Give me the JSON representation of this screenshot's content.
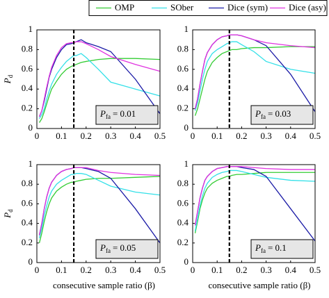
{
  "legend": {
    "entries": [
      {
        "name": "OMP",
        "color": "#33cc33"
      },
      {
        "name": "SOber",
        "color": "#33e0e8"
      },
      {
        "name": "Dice (sym)",
        "color": "#1a1aa6"
      },
      {
        "name": "Dice (asy)",
        "color": "#e033e0"
      }
    ]
  },
  "chart_data": [
    {
      "type": "line",
      "ylabel": {
        "symbol": "P",
        "subscript": "d"
      },
      "annotation": {
        "symbol": "P",
        "subscript": "fa",
        "text": "= 0.01"
      },
      "vline": 0.15,
      "xlim": [
        0,
        0.5
      ],
      "xticks": [
        0,
        0.1,
        0.2,
        0.3,
        0.4,
        0.5
      ],
      "ylim": [
        0,
        1
      ],
      "yticks": [
        0,
        0.2,
        0.4,
        0.6,
        0.8,
        1
      ],
      "x": [
        0.01,
        0.02,
        0.03,
        0.04,
        0.05,
        0.06,
        0.08,
        0.1,
        0.12,
        0.14,
        0.15,
        0.16,
        0.18,
        0.2,
        0.25,
        0.3,
        0.4,
        0.5
      ],
      "series": [
        {
          "values": [
            0.06,
            0.1,
            0.17,
            0.25,
            0.33,
            0.4,
            0.48,
            0.55,
            0.6,
            0.63,
            0.64,
            0.65,
            0.67,
            0.68,
            0.7,
            0.71,
            0.71,
            0.7
          ]
        },
        {
          "values": [
            0.1,
            0.14,
            0.2,
            0.3,
            0.38,
            0.45,
            0.55,
            0.62,
            0.68,
            0.72,
            0.74,
            0.74,
            0.76,
            0.72,
            0.6,
            0.47,
            0.4,
            0.33
          ]
        },
        {
          "values": [
            0.12,
            0.18,
            0.28,
            0.4,
            0.52,
            0.6,
            0.72,
            0.8,
            0.85,
            0.86,
            0.87,
            0.88,
            0.9,
            0.87,
            0.83,
            0.78,
            0.5,
            0.15
          ]
        },
        {
          "values": [
            0.12,
            0.18,
            0.3,
            0.42,
            0.53,
            0.62,
            0.74,
            0.82,
            0.86,
            0.87,
            0.87,
            0.88,
            0.88,
            0.86,
            0.8,
            0.73,
            0.65,
            0.58
          ]
        }
      ]
    },
    {
      "type": "line",
      "annotation": {
        "symbol": "P",
        "subscript": "fa",
        "text": "= 0.03"
      },
      "vline": 0.15,
      "xlim": [
        0,
        0.5
      ],
      "xticks": [
        0,
        0.1,
        0.2,
        0.3,
        0.4,
        0.5
      ],
      "ylim": [
        0,
        1
      ],
      "yticks": [
        0,
        0.2,
        0.4,
        0.6,
        0.8,
        1
      ],
      "x": [
        0.01,
        0.02,
        0.03,
        0.04,
        0.05,
        0.06,
        0.08,
        0.1,
        0.12,
        0.14,
        0.15,
        0.16,
        0.18,
        0.2,
        0.25,
        0.3,
        0.4,
        0.5
      ],
      "series": [
        {
          "values": [
            0.13,
            0.2,
            0.3,
            0.4,
            0.5,
            0.58,
            0.67,
            0.72,
            0.76,
            0.78,
            0.79,
            0.8,
            0.8,
            0.81,
            0.82,
            0.82,
            0.83,
            0.83
          ]
        },
        {
          "values": [
            0.18,
            0.26,
            0.38,
            0.5,
            0.6,
            0.68,
            0.76,
            0.8,
            0.83,
            0.86,
            0.87,
            0.88,
            0.88,
            0.85,
            0.78,
            0.68,
            0.6,
            0.56
          ]
        },
        {
          "values": [
            0.2,
            0.3,
            0.45,
            0.58,
            0.7,
            0.77,
            0.85,
            0.9,
            0.93,
            0.94,
            0.95,
            0.95,
            0.95,
            0.94,
            0.9,
            0.84,
            0.55,
            0.17
          ]
        },
        {
          "values": [
            0.2,
            0.3,
            0.45,
            0.58,
            0.7,
            0.77,
            0.85,
            0.9,
            0.93,
            0.94,
            0.95,
            0.95,
            0.95,
            0.94,
            0.9,
            0.87,
            0.84,
            0.82
          ]
        }
      ]
    },
    {
      "type": "line",
      "ylabel": {
        "symbol": "P",
        "subscript": "d"
      },
      "xlabel": "consecutive sample ratio (β)",
      "annotation": {
        "symbol": "P",
        "subscript": "fa",
        "text": "= 0.05"
      },
      "vline": 0.15,
      "xlim": [
        0,
        0.5
      ],
      "xticks": [
        0,
        0.1,
        0.2,
        0.3,
        0.4,
        0.5
      ],
      "ylim": [
        0,
        1
      ],
      "yticks": [
        0,
        0.2,
        0.4,
        0.6,
        0.8,
        1
      ],
      "x": [
        0.01,
        0.02,
        0.03,
        0.04,
        0.05,
        0.06,
        0.08,
        0.1,
        0.12,
        0.14,
        0.15,
        0.16,
        0.18,
        0.2,
        0.25,
        0.3,
        0.4,
        0.5
      ],
      "series": [
        {
          "values": [
            0.2,
            0.3,
            0.42,
            0.52,
            0.6,
            0.66,
            0.73,
            0.77,
            0.8,
            0.82,
            0.82,
            0.83,
            0.84,
            0.85,
            0.86,
            0.86,
            0.87,
            0.88
          ]
        },
        {
          "values": [
            0.25,
            0.35,
            0.48,
            0.58,
            0.67,
            0.73,
            0.8,
            0.84,
            0.87,
            0.9,
            0.9,
            0.91,
            0.91,
            0.9,
            0.84,
            0.78,
            0.72,
            0.69
          ]
        },
        {
          "values": [
            0.28,
            0.4,
            0.55,
            0.67,
            0.76,
            0.82,
            0.89,
            0.93,
            0.95,
            0.96,
            0.97,
            0.97,
            0.97,
            0.96,
            0.93,
            0.86,
            0.55,
            0.2
          ]
        },
        {
          "values": [
            0.28,
            0.4,
            0.55,
            0.67,
            0.76,
            0.82,
            0.89,
            0.93,
            0.95,
            0.96,
            0.97,
            0.97,
            0.97,
            0.97,
            0.94,
            0.92,
            0.9,
            0.89
          ]
        }
      ]
    },
    {
      "type": "line",
      "xlabel": "consecutive sample ratio (β)",
      "annotation": {
        "symbol": "P",
        "subscript": "fa",
        "text": "= 0.1"
      },
      "vline": 0.15,
      "xlim": [
        0,
        0.5
      ],
      "xticks": [
        0,
        0.1,
        0.2,
        0.3,
        0.4,
        0.5
      ],
      "ylim": [
        0,
        1
      ],
      "yticks": [
        0,
        0.2,
        0.4,
        0.6,
        0.8,
        1
      ],
      "x": [
        0.01,
        0.02,
        0.03,
        0.04,
        0.05,
        0.06,
        0.08,
        0.1,
        0.12,
        0.14,
        0.15,
        0.16,
        0.18,
        0.2,
        0.25,
        0.3,
        0.4,
        0.5
      ],
      "series": [
        {
          "values": [
            0.3,
            0.42,
            0.55,
            0.64,
            0.71,
            0.76,
            0.81,
            0.84,
            0.86,
            0.88,
            0.88,
            0.89,
            0.9,
            0.9,
            0.91,
            0.92,
            0.92,
            0.92
          ]
        },
        {
          "values": [
            0.32,
            0.45,
            0.58,
            0.68,
            0.76,
            0.81,
            0.87,
            0.9,
            0.92,
            0.93,
            0.94,
            0.94,
            0.94,
            0.93,
            0.9,
            0.87,
            0.84,
            0.83
          ]
        },
        {
          "values": [
            0.38,
            0.52,
            0.66,
            0.76,
            0.84,
            0.88,
            0.93,
            0.96,
            0.97,
            0.98,
            0.98,
            0.98,
            0.98,
            0.97,
            0.95,
            0.88,
            0.55,
            0.22
          ]
        },
        {
          "values": [
            0.38,
            0.52,
            0.66,
            0.76,
            0.84,
            0.88,
            0.93,
            0.96,
            0.97,
            0.98,
            0.98,
            0.98,
            0.98,
            0.98,
            0.97,
            0.96,
            0.95,
            0.95
          ]
        }
      ]
    }
  ]
}
